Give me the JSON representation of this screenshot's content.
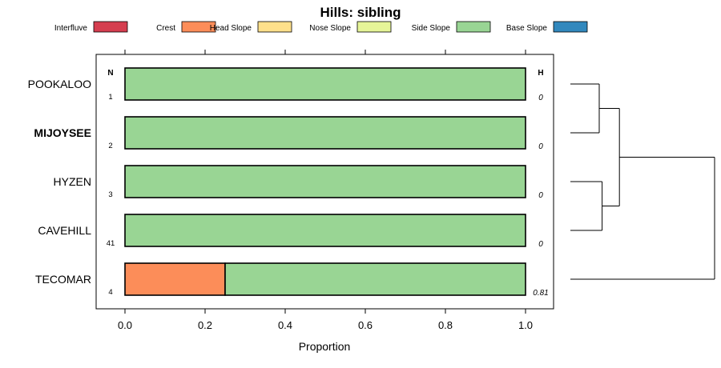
{
  "chart_data": {
    "type": "bar",
    "orientation": "horizontal-stacked",
    "title": "Hills: sibling",
    "xlabel": "Proportion",
    "xlim": [
      0,
      1
    ],
    "xticks": [
      "0.0",
      "0.2",
      "0.4",
      "0.6",
      "0.8",
      "1.0"
    ],
    "n_header": "N",
    "h_header": "H",
    "legend": [
      {
        "name": "Interfluve",
        "color": "#D53E4F"
      },
      {
        "name": "Crest",
        "color": "#FC8D59"
      },
      {
        "name": "Head Slope",
        "color": "#FEE08B"
      },
      {
        "name": "Nose Slope",
        "color": "#E6F598"
      },
      {
        "name": "Side Slope",
        "color": "#99D594"
      },
      {
        "name": "Base Slope",
        "color": "#3288BD"
      }
    ],
    "categories": [
      "POOKALOO",
      "MIJOYSEE",
      "HYZEN",
      "CAVEHILL",
      "TECOMAR"
    ],
    "highlighted": "MIJOYSEE",
    "n": [
      "1",
      "2",
      "3",
      "41",
      "4"
    ],
    "h": [
      "0",
      "0",
      "0",
      "0",
      "0.81"
    ],
    "series": [
      {
        "name": "Interfluve",
        "values": [
          0,
          0,
          0,
          0,
          0
        ]
      },
      {
        "name": "Crest",
        "values": [
          0,
          0,
          0,
          0,
          0.25
        ]
      },
      {
        "name": "Head Slope",
        "values": [
          0,
          0,
          0,
          0,
          0
        ]
      },
      {
        "name": "Nose Slope",
        "values": [
          0,
          0,
          0,
          0,
          0
        ]
      },
      {
        "name": "Side Slope",
        "values": [
          1,
          1,
          1,
          1,
          0.75
        ]
      },
      {
        "name": "Base Slope",
        "values": [
          0,
          0,
          0,
          0,
          0
        ]
      }
    ],
    "dendrogram": {
      "merges": [
        {
          "left": "POOKALOO",
          "right": "MIJOYSEE",
          "height": 0.2
        },
        {
          "left": "HYZEN",
          "right": "CAVEHILL",
          "height": 0.22
        },
        {
          "left": "merge-0",
          "right": "merge-1",
          "height": 0.34
        },
        {
          "left": "merge-2",
          "right": "TECOMAR",
          "height": 1.0
        }
      ]
    }
  }
}
